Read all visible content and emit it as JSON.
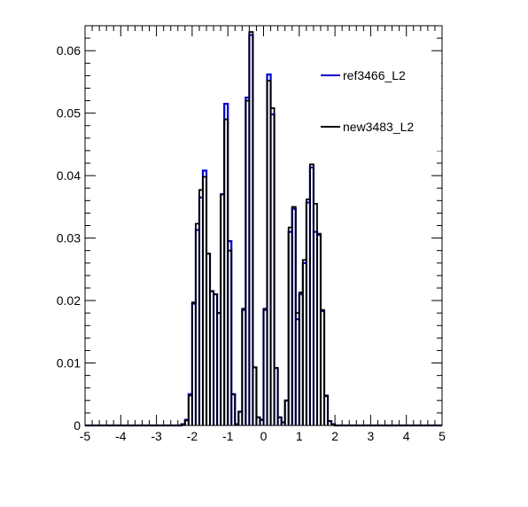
{
  "chart_data": {
    "type": "histogram-step",
    "title": "",
    "xlabel": "",
    "ylabel": "",
    "xlim": [
      -5,
      5
    ],
    "ylim": [
      0,
      0.064
    ],
    "bin_width": 0.1,
    "grid": false,
    "legend_placement": "top-right",
    "x_ticks": [
      -5,
      -4,
      -3,
      -2,
      -1,
      0,
      1,
      2,
      3,
      4,
      5
    ],
    "x_tick_labels": [
      "-5",
      "-4",
      "-3",
      "-2",
      "-1",
      "0",
      "1",
      "2",
      "3",
      "4",
      "5"
    ],
    "y_ticks": [
      0,
      0.01,
      0.02,
      0.03,
      0.04,
      0.05,
      0.06
    ],
    "y_tick_labels": [
      "0",
      "0.01",
      "0.02",
      "0.03",
      "0.04",
      "0.05",
      "0.06"
    ],
    "series": [
      {
        "name": "ref3466_L2",
        "color": "#0000cc",
        "bins": [
          {
            "x0": -2.3,
            "y": 0.0002
          },
          {
            "x0": -2.2,
            "y": 0.0009
          },
          {
            "x0": -2.1,
            "y": 0.005
          },
          {
            "x0": -2.0,
            "y": 0.0195
          },
          {
            "x0": -1.9,
            "y": 0.0313
          },
          {
            "x0": -1.8,
            "y": 0.0365
          },
          {
            "x0": -1.7,
            "y": 0.0408
          },
          {
            "x0": -1.6,
            "y": 0.0275
          },
          {
            "x0": -1.5,
            "y": 0.0215
          },
          {
            "x0": -1.4,
            "y": 0.021
          },
          {
            "x0": -1.3,
            "y": 0.018
          },
          {
            "x0": -1.2,
            "y": 0.037
          },
          {
            "x0": -1.1,
            "y": 0.0515
          },
          {
            "x0": -1.0,
            "y": 0.0295
          },
          {
            "x0": -0.9,
            "y": 0.005
          },
          {
            "x0": -0.8,
            "y": 0.0002
          },
          {
            "x0": -0.7,
            "y": 0.0022
          },
          {
            "x0": -0.6,
            "y": 0.0185
          },
          {
            "x0": -0.5,
            "y": 0.0525
          },
          {
            "x0": -0.4,
            "y": 0.0625
          },
          {
            "x0": -0.3,
            "y": 0.0093
          },
          {
            "x0": -0.2,
            "y": 0.0013
          },
          {
            "x0": -0.1,
            "y": 0.0009
          },
          {
            "x0": 0.0,
            "y": 0.0185
          },
          {
            "x0": 0.1,
            "y": 0.0562
          },
          {
            "x0": 0.2,
            "y": 0.0498
          },
          {
            "x0": 0.3,
            "y": 0.0092
          },
          {
            "x0": 0.4,
            "y": 0.0013
          },
          {
            "x0": 0.5,
            "y": 0.0005
          },
          {
            "x0": 0.6,
            "y": 0.004
          },
          {
            "x0": 0.7,
            "y": 0.031
          },
          {
            "x0": 0.8,
            "y": 0.0347
          },
          {
            "x0": 0.9,
            "y": 0.017
          },
          {
            "x0": 1.0,
            "y": 0.021
          },
          {
            "x0": 1.1,
            "y": 0.026
          },
          {
            "x0": 1.2,
            "y": 0.0357
          },
          {
            "x0": 1.3,
            "y": 0.0413
          },
          {
            "x0": 1.4,
            "y": 0.031
          },
          {
            "x0": 1.5,
            "y": 0.0305
          },
          {
            "x0": 1.6,
            "y": 0.0183
          },
          {
            "x0": 1.7,
            "y": 0.0047
          },
          {
            "x0": 1.8,
            "y": 0.0007
          },
          {
            "x0": 1.9,
            "y": 0.0002
          }
        ]
      },
      {
        "name": "new3483_L2",
        "color": "#000000",
        "bins": [
          {
            "x0": -2.3,
            "y": 0.0002
          },
          {
            "x0": -2.2,
            "y": 0.0008
          },
          {
            "x0": -2.1,
            "y": 0.0048
          },
          {
            "x0": -2.0,
            "y": 0.0197
          },
          {
            "x0": -1.9,
            "y": 0.0323
          },
          {
            "x0": -1.8,
            "y": 0.0377
          },
          {
            "x0": -1.7,
            "y": 0.0398
          },
          {
            "x0": -1.6,
            "y": 0.0275
          },
          {
            "x0": -1.5,
            "y": 0.0215
          },
          {
            "x0": -1.4,
            "y": 0.021
          },
          {
            "x0": -1.3,
            "y": 0.018
          },
          {
            "x0": -1.2,
            "y": 0.037
          },
          {
            "x0": -1.1,
            "y": 0.049
          },
          {
            "x0": -1.0,
            "y": 0.028
          },
          {
            "x0": -0.9,
            "y": 0.005
          },
          {
            "x0": -0.8,
            "y": 0.0002
          },
          {
            "x0": -0.7,
            "y": 0.0022
          },
          {
            "x0": -0.6,
            "y": 0.0187
          },
          {
            "x0": -0.5,
            "y": 0.052
          },
          {
            "x0": -0.4,
            "y": 0.063
          },
          {
            "x0": -0.3,
            "y": 0.0093
          },
          {
            "x0": -0.2,
            "y": 0.0013
          },
          {
            "x0": -0.1,
            "y": 0.0009
          },
          {
            "x0": 0.0,
            "y": 0.0187
          },
          {
            "x0": 0.1,
            "y": 0.0552
          },
          {
            "x0": 0.2,
            "y": 0.0508
          },
          {
            "x0": 0.3,
            "y": 0.0092
          },
          {
            "x0": 0.4,
            "y": 0.0013
          },
          {
            "x0": 0.5,
            "y": 0.0005
          },
          {
            "x0": 0.6,
            "y": 0.004
          },
          {
            "x0": 0.7,
            "y": 0.0317
          },
          {
            "x0": 0.8,
            "y": 0.035
          },
          {
            "x0": 0.9,
            "y": 0.018
          },
          {
            "x0": 1.0,
            "y": 0.0213
          },
          {
            "x0": 1.1,
            "y": 0.0265
          },
          {
            "x0": 1.2,
            "y": 0.0362
          },
          {
            "x0": 1.3,
            "y": 0.0418
          },
          {
            "x0": 1.4,
            "y": 0.0355
          },
          {
            "x0": 1.5,
            "y": 0.0307
          },
          {
            "x0": 1.6,
            "y": 0.0185
          },
          {
            "x0": 1.7,
            "y": 0.0048
          },
          {
            "x0": 1.8,
            "y": 0.0007
          },
          {
            "x0": 1.9,
            "y": 0.0002
          }
        ]
      }
    ]
  }
}
